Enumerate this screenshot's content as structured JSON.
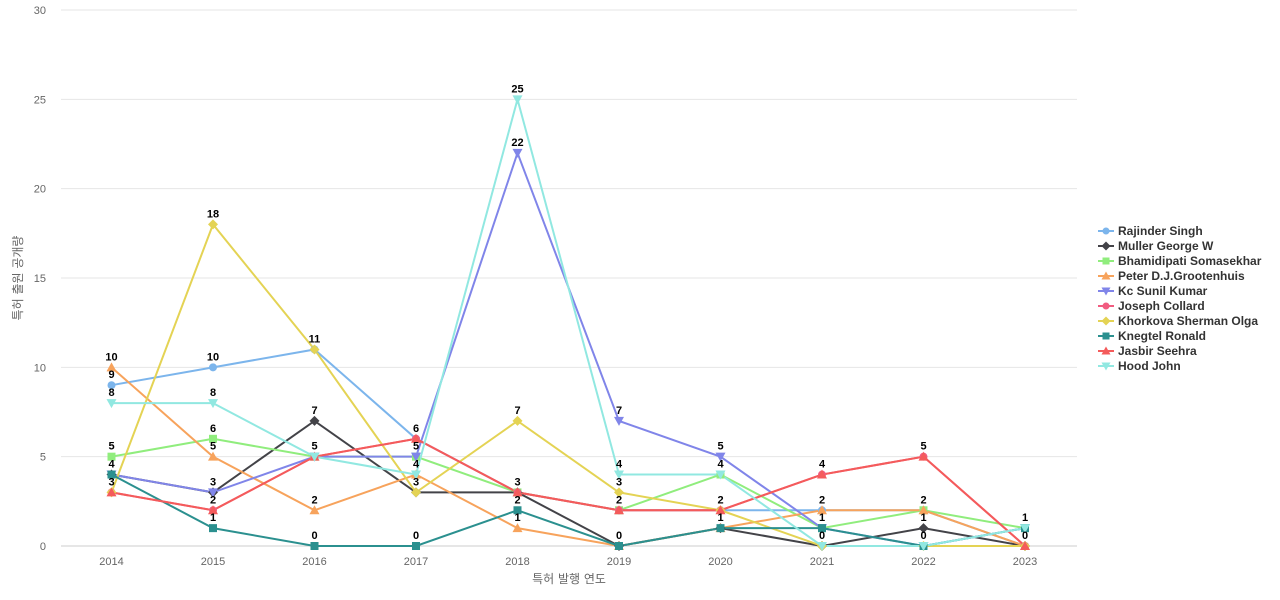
{
  "chart_data": {
    "type": "line",
    "xlabel": "특허 발행 연도",
    "ylabel": "특허 출원 공개량",
    "ylim": [
      0,
      30
    ],
    "yticks": [
      0,
      5,
      10,
      15,
      20,
      25,
      30
    ],
    "grid": true,
    "legend_position": "right",
    "categories": [
      "2014",
      "2015",
      "2016",
      "2017",
      "2018",
      "2019",
      "2020",
      "2021",
      "2022",
      "2023"
    ],
    "series": [
      {
        "name": "Rajinder Singh",
        "color": "#7cb5ec",
        "marker": "circle",
        "values": [
          9,
          10,
          11,
          6,
          3,
          2,
          2,
          2,
          2,
          0
        ]
      },
      {
        "name": "Muller George W",
        "color": "#434348",
        "marker": "diamond",
        "values": [
          4,
          3,
          7,
          3,
          3,
          0,
          1,
          0,
          1,
          0
        ]
      },
      {
        "name": "Bhamidipati Somasekhar",
        "color": "#90ed7d",
        "marker": "square",
        "values": [
          5,
          6,
          5,
          5,
          3,
          2,
          4,
          1,
          2,
          1
        ]
      },
      {
        "name": "Peter D.J.Grootenhuis",
        "color": "#f7a35c",
        "marker": "triangle",
        "values": [
          10,
          5,
          2,
          4,
          1,
          0,
          1,
          2,
          2,
          0
        ]
      },
      {
        "name": "Kc Sunil Kumar",
        "color": "#8085e9",
        "marker": "triangle-down",
        "values": [
          4,
          3,
          5,
          5,
          22,
          7,
          5,
          1,
          0,
          1
        ]
      },
      {
        "name": "Joseph Collard",
        "color": "#f15c80",
        "marker": "circle",
        "values": [
          3,
          2,
          5,
          6,
          3,
          2,
          2,
          4,
          5,
          0
        ]
      },
      {
        "name": "Khorkova Sherman Olga",
        "color": "#e4d354",
        "marker": "diamond",
        "values": [
          3,
          18,
          11,
          3,
          7,
          3,
          2,
          0,
          0,
          0
        ]
      },
      {
        "name": "Knegtel Ronald",
        "color": "#2b908f",
        "marker": "square",
        "values": [
          4,
          1,
          0,
          0,
          2,
          0,
          1,
          1,
          0,
          1
        ]
      },
      {
        "name": "Jasbir Seehra",
        "color": "#f45b5b",
        "marker": "triangle",
        "values": [
          3,
          2,
          5,
          6,
          3,
          2,
          2,
          4,
          5,
          0
        ]
      },
      {
        "name": "Hood John",
        "color": "#91e8e1",
        "marker": "triangle-down",
        "values": [
          8,
          8,
          5,
          4,
          25,
          4,
          4,
          0,
          0,
          1
        ]
      }
    ],
    "data_labels": [
      {
        "x": "2014",
        "y": 10,
        "text": "10"
      },
      {
        "x": "2014",
        "y": 9,
        "text": "9"
      },
      {
        "x": "2014",
        "y": 8,
        "text": "8"
      },
      {
        "x": "2014",
        "y": 5,
        "text": "5"
      },
      {
        "x": "2014",
        "y": 4,
        "text": "4"
      },
      {
        "x": "2014",
        "y": 3,
        "text": "3"
      },
      {
        "x": "2015",
        "y": 18,
        "text": "18"
      },
      {
        "x": "2015",
        "y": 10,
        "text": "10"
      },
      {
        "x": "2015",
        "y": 8,
        "text": "8"
      },
      {
        "x": "2015",
        "y": 6,
        "text": "6"
      },
      {
        "x": "2015",
        "y": 5,
        "text": "5"
      },
      {
        "x": "2015",
        "y": 3,
        "text": "3"
      },
      {
        "x": "2015",
        "y": 2,
        "text": "2"
      },
      {
        "x": "2015",
        "y": 1,
        "text": "1"
      },
      {
        "x": "2016",
        "y": 11,
        "text": "11"
      },
      {
        "x": "2016",
        "y": 7,
        "text": "7"
      },
      {
        "x": "2016",
        "y": 5,
        "text": "5"
      },
      {
        "x": "2016",
        "y": 2,
        "text": "2"
      },
      {
        "x": "2016",
        "y": 0,
        "text": "0"
      },
      {
        "x": "2017",
        "y": 6,
        "text": "6"
      },
      {
        "x": "2017",
        "y": 5,
        "text": "5"
      },
      {
        "x": "2017",
        "y": 4,
        "text": "4"
      },
      {
        "x": "2017",
        "y": 3,
        "text": "3"
      },
      {
        "x": "2017",
        "y": 0,
        "text": "0"
      },
      {
        "x": "2018",
        "y": 25,
        "text": "25"
      },
      {
        "x": "2018",
        "y": 22,
        "text": "22"
      },
      {
        "x": "2018",
        "y": 7,
        "text": "7"
      },
      {
        "x": "2018",
        "y": 3,
        "text": "3"
      },
      {
        "x": "2018",
        "y": 2,
        "text": "2"
      },
      {
        "x": "2018",
        "y": 1,
        "text": "1"
      },
      {
        "x": "2019",
        "y": 7,
        "text": "7"
      },
      {
        "x": "2019",
        "y": 4,
        "text": "4"
      },
      {
        "x": "2019",
        "y": 3,
        "text": "3"
      },
      {
        "x": "2019",
        "y": 2,
        "text": "2"
      },
      {
        "x": "2019",
        "y": 0,
        "text": "0"
      },
      {
        "x": "2020",
        "y": 5,
        "text": "5"
      },
      {
        "x": "2020",
        "y": 4,
        "text": "4"
      },
      {
        "x": "2020",
        "y": 2,
        "text": "2"
      },
      {
        "x": "2020",
        "y": 1,
        "text": "1"
      },
      {
        "x": "2021",
        "y": 4,
        "text": "4"
      },
      {
        "x": "2021",
        "y": 2,
        "text": "2"
      },
      {
        "x": "2021",
        "y": 1,
        "text": "1"
      },
      {
        "x": "2021",
        "y": 0,
        "text": "0"
      },
      {
        "x": "2022",
        "y": 5,
        "text": "5"
      },
      {
        "x": "2022",
        "y": 2,
        "text": "2"
      },
      {
        "x": "2022",
        "y": 1,
        "text": "1"
      },
      {
        "x": "2022",
        "y": 0,
        "text": "0"
      },
      {
        "x": "2023",
        "y": 1,
        "text": "1"
      },
      {
        "x": "2023",
        "y": 0,
        "text": "0"
      }
    ]
  }
}
